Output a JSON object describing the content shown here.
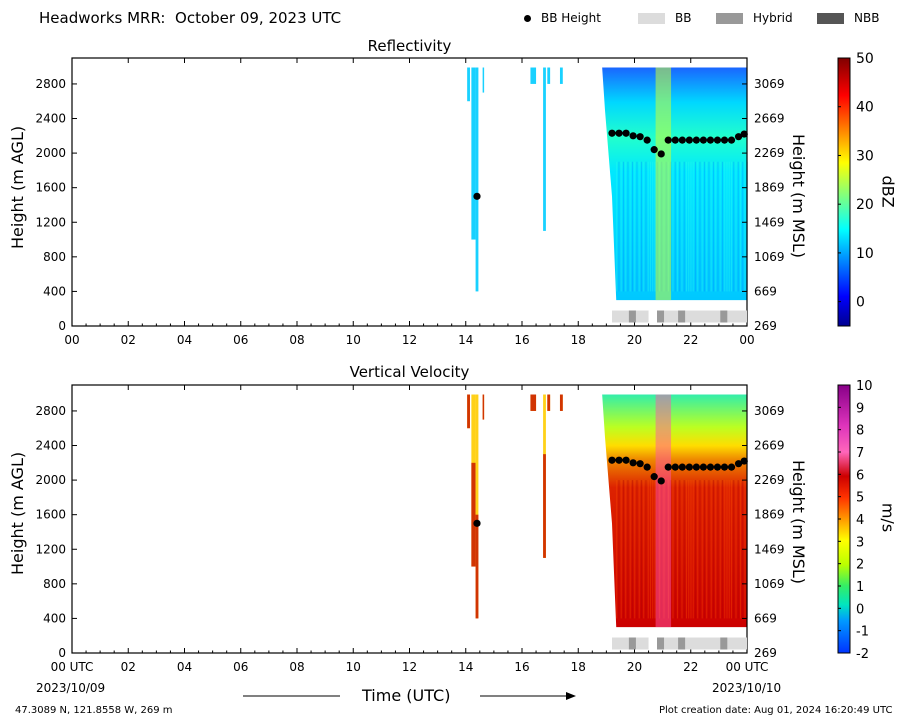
{
  "figure": {
    "title": "Headworks MRR:  October 09, 2023 UTC",
    "legend": [
      {
        "label": "BB Height",
        "kind": "dot",
        "color": "#000000"
      },
      {
        "label": "BB",
        "kind": "swatch",
        "color": "#dcdcdc"
      },
      {
        "label": "Hybrid",
        "kind": "swatch",
        "color": "#999999"
      },
      {
        "label": "NBB",
        "kind": "swatch",
        "color": "#555555"
      }
    ],
    "xlabel": "Time (UTC)",
    "x_start_label": "00 UTC",
    "x_start_date": "2023/10/09",
    "x_end_label": "00 UTC",
    "x_end_date": "2023/10/10",
    "location": "47.3089 N, 121.8558 W, 269 m",
    "created": "Plot creation date: Aug 01, 2024 16:20:49 UTC"
  },
  "chart_data": [
    {
      "type": "heatmap",
      "title": "Reflectivity",
      "ylabel": "Height (m AGL)",
      "ylabel_right": "Height (m MSL)",
      "colorbar_label": "dBZ",
      "colorbar_range": [
        -5,
        50
      ],
      "colorbar_ticks": [
        "0",
        "10",
        "20",
        "30",
        "40",
        "50"
      ],
      "colormap": "jet",
      "xlim": [
        0,
        24
      ],
      "ylim": [
        0,
        3100
      ],
      "xticks": [
        "00",
        "02",
        "04",
        "06",
        "08",
        "10",
        "12",
        "14",
        "16",
        "18",
        "20",
        "22",
        "00"
      ],
      "yticks_left": [
        0,
        400,
        800,
        1200,
        1600,
        2000,
        2400,
        2800
      ],
      "yticks_right": [
        269,
        669,
        1069,
        1469,
        1869,
        2269,
        2669,
        3069
      ],
      "bb_height": {
        "time_hr": [
          14.4,
          19.2,
          19.45,
          19.7,
          19.95,
          20.2,
          20.45,
          20.7,
          20.95,
          21.2,
          21.45,
          21.7,
          21.95,
          22.2,
          22.45,
          22.7,
          22.95,
          23.2,
          23.45,
          23.7,
          23.9
        ],
        "height_m": [
          1500,
          2230,
          2230,
          2230,
          2200,
          2190,
          2150,
          2040,
          1990,
          2150,
          2150,
          2150,
          2150,
          2150,
          2150,
          2150,
          2150,
          2150,
          2150,
          2190,
          2220
        ]
      },
      "bb_type_bar": [
        {
          "start": 19.2,
          "end": 20.5,
          "type": "BB"
        },
        {
          "start": 20.8,
          "end": 24.0,
          "type": "BB"
        },
        {
          "start": 19.8,
          "end": 20.05,
          "type": "Hybrid"
        },
        {
          "start": 20.8,
          "end": 21.05,
          "type": "Hybrid"
        },
        {
          "start": 21.55,
          "end": 21.8,
          "type": "Hybrid"
        },
        {
          "start": 23.05,
          "end": 23.3,
          "type": "Hybrid"
        }
      ]
    },
    {
      "type": "heatmap",
      "title": "Vertical Velocity",
      "ylabel": "Height (m AGL)",
      "ylabel_right": "Height (m MSL)",
      "colorbar_label": "m/s",
      "colorbar_range": [
        -2,
        10
      ],
      "colorbar_ticks": [
        "-2",
        "-1",
        "0",
        "1",
        "2",
        "3",
        "4",
        "5",
        "6",
        "7",
        "8",
        "9",
        "10"
      ],
      "colormap": "velocity",
      "xlim": [
        0,
        24
      ],
      "ylim": [
        0,
        3100
      ],
      "xticks": [
        "00 UTC",
        "02",
        "04",
        "06",
        "08",
        "10",
        "12",
        "14",
        "16",
        "18",
        "20",
        "22",
        "00 UTC"
      ],
      "yticks_left": [
        0,
        400,
        800,
        1200,
        1600,
        2000,
        2400,
        2800
      ],
      "yticks_right": [
        269,
        669,
        1069,
        1469,
        1869,
        2269,
        2669,
        3069
      ],
      "bb_height": {
        "time_hr": [
          14.4,
          19.2,
          19.45,
          19.7,
          19.95,
          20.2,
          20.45,
          20.7,
          20.95,
          21.2,
          21.45,
          21.7,
          21.95,
          22.2,
          22.45,
          22.7,
          22.95,
          23.2,
          23.45,
          23.7,
          23.9
        ],
        "height_m": [
          1500,
          2230,
          2230,
          2230,
          2200,
          2190,
          2150,
          2040,
          1990,
          2150,
          2150,
          2150,
          2150,
          2150,
          2150,
          2150,
          2150,
          2150,
          2150,
          2190,
          2220
        ]
      },
      "bb_type_bar": [
        {
          "start": 19.2,
          "end": 20.5,
          "type": "BB"
        },
        {
          "start": 20.8,
          "end": 24.0,
          "type": "BB"
        },
        {
          "start": 19.8,
          "end": 20.05,
          "type": "Hybrid"
        },
        {
          "start": 20.8,
          "end": 21.05,
          "type": "Hybrid"
        },
        {
          "start": 21.55,
          "end": 21.8,
          "type": "Hybrid"
        },
        {
          "start": 23.05,
          "end": 23.3,
          "type": "Hybrid"
        }
      ]
    }
  ]
}
